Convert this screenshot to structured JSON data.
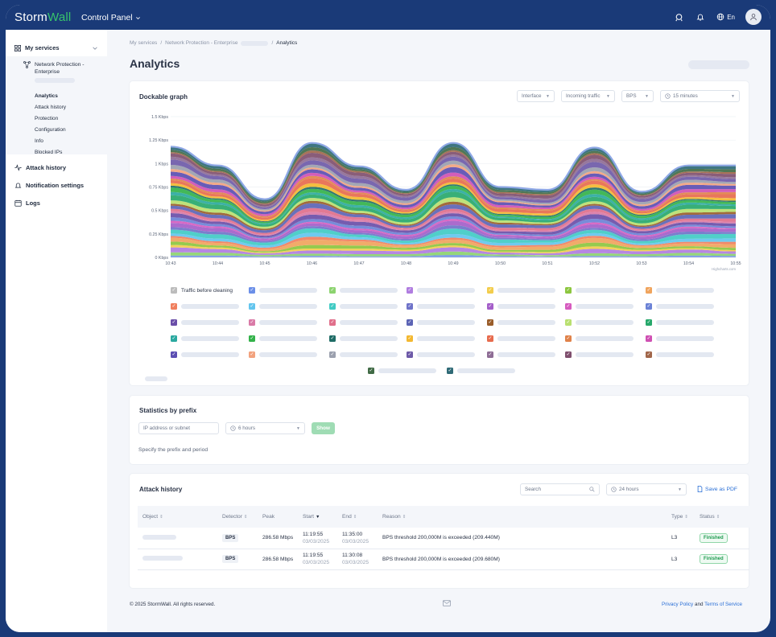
{
  "header": {
    "brand_a": "Storm",
    "brand_b": "Wall",
    "control_panel": "Control Panel",
    "lang": "En",
    "colors": {
      "bar": "#1a3a78",
      "brand_green": "#37c46b"
    }
  },
  "sidebar": {
    "my_services": "My services",
    "service_name": "Network Protection - Enterprise",
    "sub_items": [
      "Analytics",
      "Attack history",
      "Protection",
      "Configuration",
      "Info",
      "Blocked IPs"
    ],
    "attack_history": "Attack history",
    "notification_settings": "Notification settings",
    "logs": "Logs"
  },
  "breadcrumb": {
    "a": "My services",
    "b": "Network Protection - Enterprise",
    "c": "Analytics",
    "sep": "/"
  },
  "page": {
    "title": "Analytics"
  },
  "graph_card": {
    "title": "Dockable graph",
    "selects": {
      "interface": "Interface",
      "direction": "Incoming traffic",
      "unit": "BPS",
      "period": "15 minutes"
    },
    "credit": "Highcharts.com",
    "legend_first": "Traffic before cleaning",
    "legend_colors": [
      "#bcbcbc",
      "#6b8fe8",
      "#8cd36f",
      "#b07de0",
      "#f3cd4c",
      "#8cc63f",
      "#f0a45d",
      "#f07f5e",
      "#63c5ee",
      "#41cbc4",
      "#6f73c9",
      "#a45ec9",
      "#d65bbf",
      "#6b82d6",
      "#6a4ea8",
      "#d97aa7",
      "#e06f8b",
      "#5c64b5",
      "#9a5d2a",
      "#b9e070",
      "#27a86b",
      "#2ba9a0",
      "#33b24a",
      "#1f6c66",
      "#f3b830",
      "#e76b4d",
      "#e0824a",
      "#cf50b3",
      "#5b4eb2",
      "#f2a27e",
      "#9ba0ae",
      "#6e5aa8",
      "#8e6d95",
      "#7f4f6e",
      "#a1664a",
      "#416b46",
      "#2f6a76"
    ]
  },
  "chart_data": {
    "type": "area",
    "stacked": true,
    "x": [
      "10:43",
      "10:44",
      "10:45",
      "10:46",
      "10:47",
      "10:48",
      "10:49",
      "10:50",
      "10:51",
      "10:52",
      "10:53",
      "10:54",
      "10:55"
    ],
    "y_ticks": [
      "0 Kbps",
      "0.25 Kbps",
      "0.5 Kbps",
      "0.75 Kbps",
      "1 Kbps",
      "1.25 Kbps",
      "1.5 Kbps"
    ],
    "ylim": [
      0,
      1.5
    ],
    "total": [
      1.18,
      0.98,
      0.62,
      1.22,
      0.97,
      0.72,
      1.22,
      0.75,
      0.72,
      1.17,
      0.7,
      0.98,
      0.98
    ],
    "grid": true
  },
  "prefix_card": {
    "title": "Statistics by prefix",
    "ip_placeholder": "IP address or subnet",
    "period": "6 hours",
    "show": "Show",
    "hint": "Specify the prefix and period"
  },
  "history_card": {
    "title": "Attack history",
    "search_placeholder": "Search",
    "period": "24 hours",
    "save_pdf": "Save as PDF",
    "columns": [
      "Object",
      "Detector",
      "Peak",
      "Start",
      "End",
      "Reason",
      "Type",
      "Status"
    ],
    "rows": [
      {
        "detector": "BPS",
        "peak": "286.58 Mbps",
        "start_time": "11:19:55",
        "start_date": "03/03/2025",
        "end_time": "11:35:00",
        "end_date": "03/03/2025",
        "reason": "BPS threshold 200,000M is exceeded (209.440M)",
        "type": "L3",
        "status": "Finished"
      },
      {
        "detector": "BPS",
        "peak": "286.58 Mbps",
        "start_time": "11:19:55",
        "start_date": "03/03/2025",
        "end_time": "11:30:08",
        "end_date": "03/03/2025",
        "reason": "BPS threshold 200,000M is exceeded (209.680M)",
        "type": "L3",
        "status": "Finished"
      }
    ]
  },
  "footer": {
    "copyright": "© 2025 StormWall. All rights reserved.",
    "privacy": "Privacy Policy",
    "and": "and",
    "terms": "Terms of Service"
  }
}
